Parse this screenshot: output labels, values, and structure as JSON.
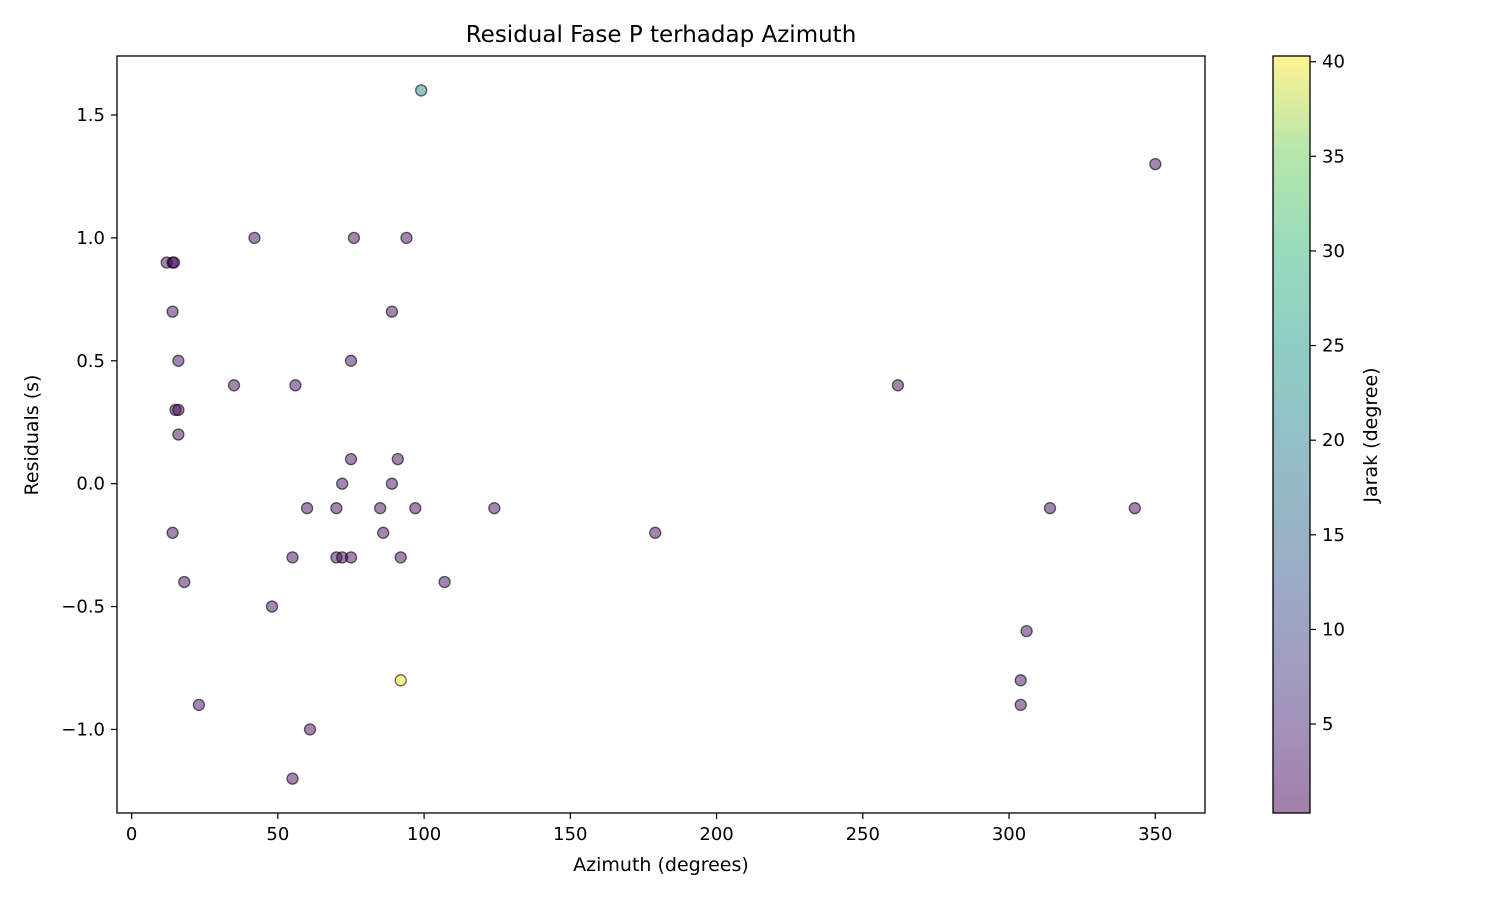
{
  "chart_data": {
    "type": "scatter",
    "title": "Residual Fase P terhadap Azimuth",
    "xlabel": "Azimuth (degrees)",
    "ylabel": "Residuals (s)",
    "xlim": [
      -5,
      367
    ],
    "ylim": [
      -1.34,
      1.74
    ],
    "xticks": [
      0,
      50,
      100,
      150,
      200,
      250,
      300,
      350
    ],
    "yticks": [
      -1.0,
      -0.5,
      0.0,
      0.5,
      1.0,
      1.5
    ],
    "ytick_labels": [
      "−1.0",
      "−0.5",
      "0.0",
      "0.5",
      "1.0",
      "1.5"
    ],
    "grid": false,
    "colorbar": {
      "label": "Jarak (degree)",
      "colormap": "viridis",
      "range": [
        0.3,
        40.3
      ],
      "ticks": [
        5,
        10,
        15,
        20,
        25,
        30,
        35,
        40
      ],
      "alpha": 0.5
    },
    "marker": {
      "edge_color": "#000000",
      "alpha": 0.5
    },
    "points": [
      {
        "x": 99,
        "y": 1.6,
        "c": 22
      },
      {
        "x": 350,
        "y": 1.3,
        "c": 2
      },
      {
        "x": 42,
        "y": 1.0,
        "c": 2
      },
      {
        "x": 76,
        "y": 1.0,
        "c": 2
      },
      {
        "x": 94,
        "y": 1.0,
        "c": 2
      },
      {
        "x": 12,
        "y": 0.9,
        "c": 2
      },
      {
        "x": 14,
        "y": 0.9,
        "c": 1
      },
      {
        "x": 14.5,
        "y": 0.9,
        "c": 0.5
      },
      {
        "x": 14,
        "y": 0.7,
        "c": 2
      },
      {
        "x": 89,
        "y": 0.7,
        "c": 2
      },
      {
        "x": 16,
        "y": 0.5,
        "c": 2
      },
      {
        "x": 75,
        "y": 0.5,
        "c": 2
      },
      {
        "x": 35,
        "y": 0.4,
        "c": 2
      },
      {
        "x": 56,
        "y": 0.4,
        "c": 2
      },
      {
        "x": 262,
        "y": 0.4,
        "c": 2
      },
      {
        "x": 15,
        "y": 0.3,
        "c": 2
      },
      {
        "x": 16,
        "y": 0.3,
        "c": 1
      },
      {
        "x": 16,
        "y": 0.2,
        "c": 2
      },
      {
        "x": 75,
        "y": 0.1,
        "c": 2
      },
      {
        "x": 91,
        "y": 0.1,
        "c": 2
      },
      {
        "x": 72,
        "y": 0.0,
        "c": 2
      },
      {
        "x": 89,
        "y": 0.0,
        "c": 2
      },
      {
        "x": 60,
        "y": -0.1,
        "c": 2
      },
      {
        "x": 70,
        "y": -0.1,
        "c": 2
      },
      {
        "x": 85,
        "y": -0.1,
        "c": 2
      },
      {
        "x": 97,
        "y": -0.1,
        "c": 2
      },
      {
        "x": 124,
        "y": -0.1,
        "c": 2
      },
      {
        "x": 314,
        "y": -0.1,
        "c": 2
      },
      {
        "x": 343,
        "y": -0.1,
        "c": 2
      },
      {
        "x": 14,
        "y": -0.2,
        "c": 2
      },
      {
        "x": 86,
        "y": -0.2,
        "c": 2
      },
      {
        "x": 179,
        "y": -0.2,
        "c": 2
      },
      {
        "x": 55,
        "y": -0.3,
        "c": 2
      },
      {
        "x": 70,
        "y": -0.3,
        "c": 2
      },
      {
        "x": 72,
        "y": -0.3,
        "c": 1
      },
      {
        "x": 75,
        "y": -0.3,
        "c": 2
      },
      {
        "x": 92,
        "y": -0.3,
        "c": 2
      },
      {
        "x": 18,
        "y": -0.4,
        "c": 2
      },
      {
        "x": 107,
        "y": -0.4,
        "c": 2
      },
      {
        "x": 48,
        "y": -0.5,
        "c": 2
      },
      {
        "x": 306,
        "y": -0.6,
        "c": 2
      },
      {
        "x": 92,
        "y": -0.8,
        "c": 40.3
      },
      {
        "x": 304,
        "y": -0.8,
        "c": 2
      },
      {
        "x": 23,
        "y": -0.9,
        "c": 2
      },
      {
        "x": 304,
        "y": -0.9,
        "c": 2
      },
      {
        "x": 61,
        "y": -1.0,
        "c": 2
      },
      {
        "x": 55,
        "y": -1.2,
        "c": 2
      }
    ]
  }
}
